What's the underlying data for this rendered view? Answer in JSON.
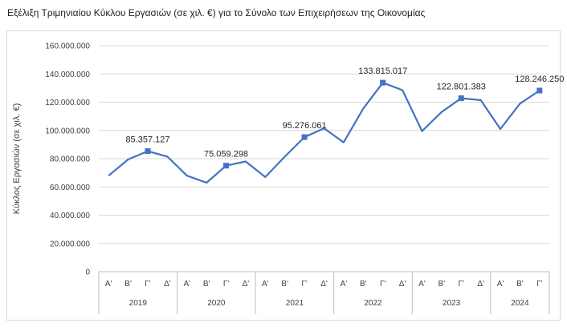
{
  "page": {
    "title": "Εξέλιξη Τριμηνιαίου Κύκλου Εργασιών (σε χιλ. €) για το Σύνολο των Επιχειρήσεων της Οικονομίας"
  },
  "chart_data": {
    "type": "line",
    "title": "",
    "xlabel": "",
    "ylabel": "Κύκλος Εργασιών (σε χιλ. €)",
    "ylim": [
      0,
      160000000
    ],
    "y_ticks": [
      "0",
      "20.000.000",
      "40.000.000",
      "60.000.000",
      "80.000.000",
      "100.000.000",
      "120.000.000",
      "140.000.000",
      "160.000.000"
    ],
    "grid": true,
    "line_color": "#4472c4",
    "groups": [
      {
        "year": "2019",
        "quarters": [
          "Α'",
          "Β'",
          "Γ'",
          "Δ'"
        ]
      },
      {
        "year": "2020",
        "quarters": [
          "Α'",
          "Β'",
          "Γ'",
          "Δ'"
        ]
      },
      {
        "year": "2021",
        "quarters": [
          "Α'",
          "Β'",
          "Γ'",
          "Δ'"
        ]
      },
      {
        "year": "2022",
        "quarters": [
          "Α'",
          "Β'",
          "Γ'",
          "Δ'"
        ]
      },
      {
        "year": "2023",
        "quarters": [
          "Α'",
          "Β'",
          "Γ'",
          "Δ'"
        ]
      },
      {
        "year": "2024",
        "quarters": [
          "Α'",
          "Β'",
          "Γ'"
        ]
      }
    ],
    "values": [
      68000000,
      79500000,
      85357127,
      81500000,
      68000000,
      63000000,
      75059298,
      78000000,
      67000000,
      81500000,
      95276061,
      101500000,
      91500000,
      115500000,
      133815017,
      128500000,
      99500000,
      113000000,
      122801383,
      121500000,
      101000000,
      119000000,
      128246250
    ],
    "labeled_points": [
      {
        "index": 2,
        "label": "85.357.127"
      },
      {
        "index": 6,
        "label": "75.059.298"
      },
      {
        "index": 10,
        "label": "95.276.061"
      },
      {
        "index": 14,
        "label": "133.815.017"
      },
      {
        "index": 18,
        "label": "122.801.383"
      },
      {
        "index": 22,
        "label": "128.246.250"
      }
    ]
  }
}
